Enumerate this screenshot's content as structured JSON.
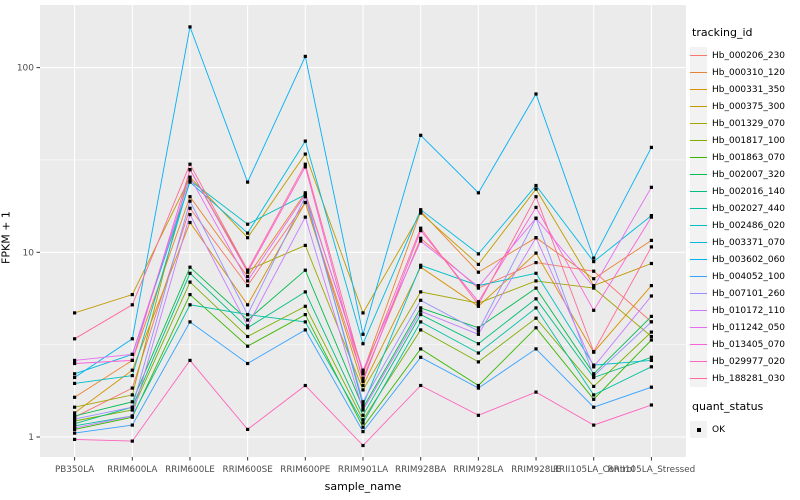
{
  "chart_data": {
    "type": "line",
    "title": "",
    "xlabel": "sample_name",
    "ylabel": "FPKM + 1",
    "y_scale": "log10",
    "y_ticks": [
      1,
      10,
      100
    ],
    "y_minor_log": [
      0.5,
      1.5
    ],
    "ylim_log": [
      -0.11,
      2.34
    ],
    "grid": "on",
    "legend_position": "right",
    "legend_title": "tracking_id",
    "legend2_title": "quant_status",
    "legend2_items": [
      {
        "label": "OK",
        "marker": "black-square"
      }
    ],
    "point_marker": "filled-square",
    "categories": [
      "PB350LA",
      "RRIM600LA",
      "RRIM600LE",
      "RRIM600SE",
      "RRIM600PE",
      "RRIM901LA",
      "RRIM928BA",
      "RRIM928LA",
      "RRIM928LE",
      "RRII105LA_Control",
      "RRII105LA_Stressed"
    ],
    "series": [
      {
        "name": "Hb_000206_230",
        "color": "#F8766D",
        "values": [
          1.28,
          1.84,
          17.3,
          6.6,
          18.6,
          2.08,
          11.9,
          6.4,
          8.8,
          7.9,
          4.2
        ]
      },
      {
        "name": "Hb_000310_120",
        "color": "#EA8331",
        "values": [
          1.64,
          2.6,
          20,
          7.4,
          21,
          2.25,
          16.7,
          7.8,
          12,
          7.2,
          11.6
        ]
      },
      {
        "name": "Hb_000331_350",
        "color": "#D89000",
        "values": [
          1.35,
          2.3,
          14.5,
          5.2,
          18.6,
          1.9,
          8.3,
          5.1,
          9.9,
          2.88,
          6.6
        ]
      },
      {
        "name": "Hb_000375_300",
        "color": "#C09B00",
        "values": [
          4.7,
          5.9,
          25.5,
          12,
          34,
          4.7,
          16.3,
          8.6,
          22,
          6.6,
          8.7
        ]
      },
      {
        "name": "Hb_001329_070",
        "color": "#A3A500",
        "values": [
          1.45,
          1.69,
          28,
          8,
          10.9,
          1.8,
          6.1,
          5.3,
          7,
          6.4,
          3.5
        ]
      },
      {
        "name": "Hb_001817_100",
        "color": "#7CAE00",
        "values": [
          1.22,
          1.4,
          6.9,
          3.5,
          5.1,
          1.24,
          3.8,
          2.55,
          4.4,
          1.88,
          3.7
        ]
      },
      {
        "name": "Hb_001863_070",
        "color": "#39B600",
        "values": [
          1.1,
          1.28,
          5.9,
          3.1,
          4.6,
          1.13,
          3.0,
          1.9,
          3.9,
          1.6,
          3.35
        ]
      },
      {
        "name": "Hb_002007_320",
        "color": "#00BB4E",
        "values": [
          1.3,
          1.55,
          8.3,
          4.3,
          8.0,
          1.44,
          5.0,
          3.9,
          6.4,
          2.2,
          4.5
        ]
      },
      {
        "name": "Hb_002016_140",
        "color": "#00BF7D",
        "values": [
          1.18,
          1.45,
          7.7,
          3.9,
          6.1,
          1.31,
          4.6,
          3.2,
          5.6,
          2.1,
          2.7
        ]
      },
      {
        "name": "Hb_002027_440",
        "color": "#00C1A3",
        "values": [
          1.15,
          1.3,
          5.2,
          4.6,
          4.2,
          1.19,
          4.2,
          2.85,
          5.0,
          1.69,
          2.4
        ]
      },
      {
        "name": "Hb_002486_020",
        "color": "#00BFC4",
        "values": [
          1.95,
          2.15,
          24.5,
          14.2,
          20.5,
          1.49,
          8.5,
          6.6,
          7.7,
          2.45,
          2.6
        ]
      },
      {
        "name": "Hb_003371_070",
        "color": "#00BAE0",
        "values": [
          2.2,
          2.8,
          24,
          12.7,
          40,
          3.2,
          17,
          9.8,
          23,
          8.9,
          15.8
        ]
      },
      {
        "name": "Hb_003602_060",
        "color": "#00B0F6",
        "values": [
          2.1,
          3.4,
          166,
          24,
          115,
          3.6,
          43,
          21,
          72,
          9.3,
          37
        ]
      },
      {
        "name": "Hb_004052_100",
        "color": "#35A2FF",
        "values": [
          1.05,
          1.16,
          4.2,
          2.5,
          3.8,
          1.07,
          2.7,
          1.84,
          3.0,
          1.45,
          1.86
        ]
      },
      {
        "name": "Hb_007101_260",
        "color": "#9590FF",
        "values": [
          1.25,
          1.45,
          18.9,
          4.6,
          20,
          1.55,
          5.5,
          3.75,
          15.3,
          2.14,
          4.2
        ]
      },
      {
        "name": "Hb_010172_110",
        "color": "#C77CFF",
        "values": [
          1.12,
          1.3,
          16,
          4.0,
          15.5,
          1.4,
          4.8,
          3.6,
          12,
          2.4,
          5.8
        ]
      },
      {
        "name": "Hb_011242_050",
        "color": "#E76BF3",
        "values": [
          2.6,
          2.8,
          25.5,
          7.0,
          20.5,
          2.3,
          11.5,
          6.5,
          15.3,
          6.5,
          22.5
        ]
      },
      {
        "name": "Hb_013405_070",
        "color": "#FA62DB",
        "values": [
          2.5,
          2.6,
          28,
          7.8,
          29,
          2.0,
          13.1,
          5.4,
          17.5,
          4.85,
          15.5
        ]
      },
      {
        "name": "Hb_029977_020",
        "color": "#FF62BC",
        "values": [
          0.97,
          0.95,
          2.6,
          1.1,
          1.9,
          0.9,
          1.9,
          1.31,
          1.75,
          1.16,
          1.49
        ]
      },
      {
        "name": "Hb_188281_030",
        "color": "#FF6A98",
        "values": [
          3.4,
          5.2,
          30,
          8.0,
          30,
          2.2,
          13.5,
          5.2,
          20,
          2.9,
          10.7
        ]
      }
    ]
  },
  "style": {
    "panel_bg": "#EBEBEB",
    "grid_color": "#FFFFFF",
    "legend_key_bg": "#F2F2F2",
    "tick_text_color": "#4D4D4D",
    "point_color": "#000000"
  }
}
